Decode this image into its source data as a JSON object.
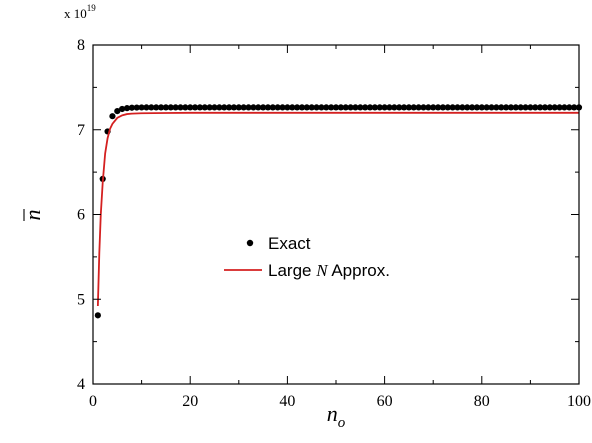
{
  "chart_data": {
    "type": "line",
    "xlabel": "n",
    "xlabel_subscript": "o",
    "ylabel": "n",
    "ylabel_overbar": true,
    "y_multiplier": {
      "prefix": "x 10",
      "exponent": "19"
    },
    "xlim": [
      0,
      100
    ],
    "ylim": [
      4,
      8
    ],
    "xticks": [
      0,
      20,
      40,
      60,
      80,
      100
    ],
    "yticks": [
      4,
      5,
      6,
      7,
      8
    ],
    "grid": false,
    "legend": {
      "position": "center",
      "entries": [
        {
          "label": "Exact",
          "marker": "dot",
          "color": "#000000"
        },
        {
          "label_parts": [
            "Large ",
            "N",
            " Approx."
          ],
          "marker": "line",
          "color": "#d42020"
        }
      ]
    },
    "series": [
      {
        "name": "Exact",
        "style": "markers",
        "color": "#000000",
        "x": [
          1,
          2,
          3,
          4,
          5,
          6,
          7,
          8,
          9,
          10
        ],
        "y": [
          4.81,
          6.42,
          6.98,
          7.16,
          7.22,
          7.245,
          7.255,
          7.26,
          7.262,
          7.263
        ],
        "plateau": {
          "x_start": 11,
          "x_end": 100,
          "step": 1,
          "value": 7.264
        }
      },
      {
        "name": "Large N Approx.",
        "style": "line",
        "color": "#d42020",
        "x": [
          1,
          1.3,
          1.6,
          2,
          2.5,
          3,
          3.5,
          4,
          5,
          6,
          7,
          8,
          10,
          15,
          20,
          100
        ],
        "y": [
          4.92,
          5.55,
          6.0,
          6.38,
          6.72,
          6.9,
          7.01,
          7.07,
          7.14,
          7.17,
          7.185,
          7.19,
          7.195,
          7.198,
          7.2,
          7.2
        ]
      }
    ]
  }
}
